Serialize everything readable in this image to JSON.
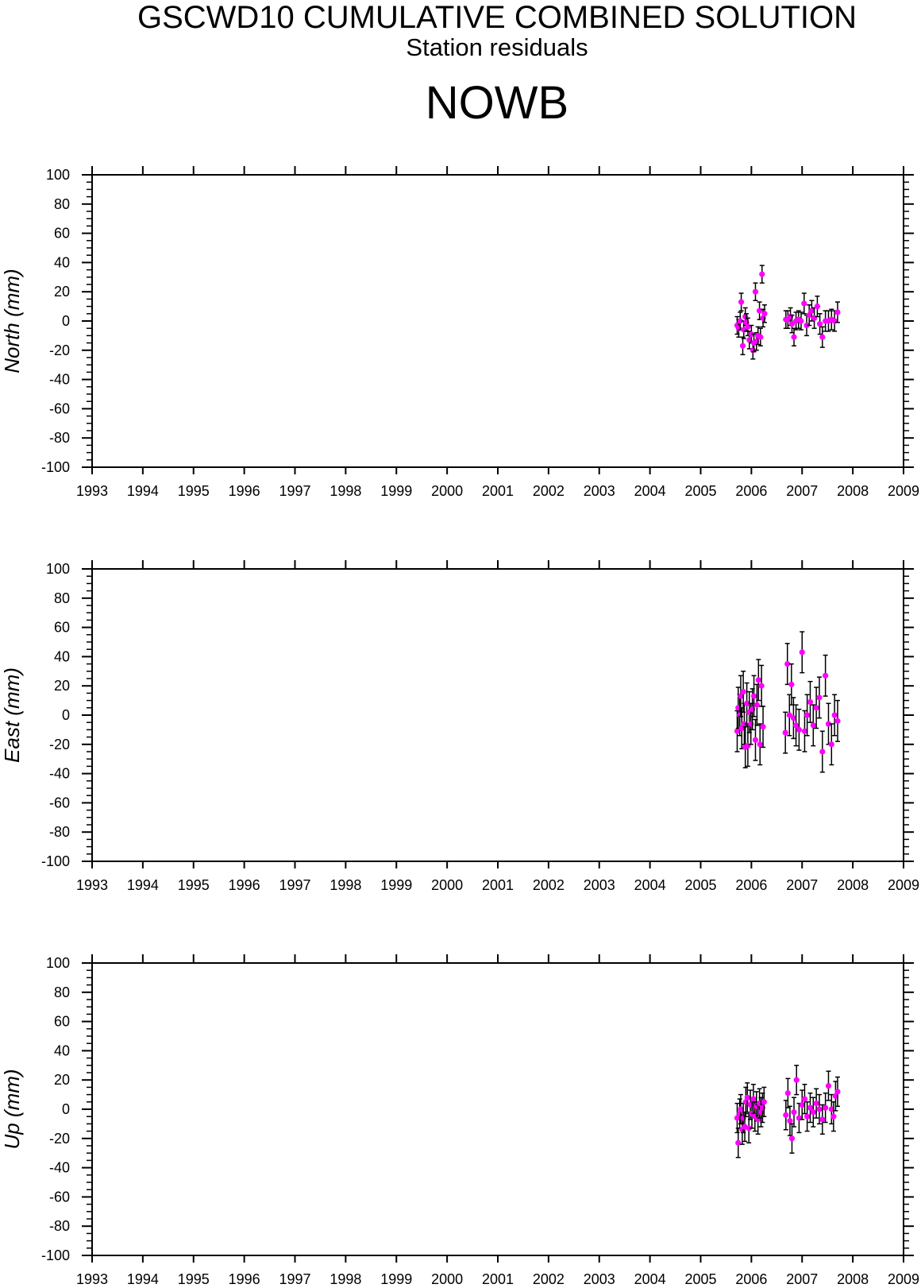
{
  "header": {
    "title": "GSCWD10 CUMULATIVE COMBINED SOLUTION",
    "subtitle": "Station residuals",
    "station": "NOWB"
  },
  "style": {
    "point_color": "#ff00ff",
    "errorbar_color": "#000000"
  },
  "chart_data": [
    {
      "type": "scatter",
      "ylabel": "North (mm)",
      "xlim": [
        1993,
        2009
      ],
      "ylim": [
        -100,
        100
      ],
      "x_ticks": [
        1993,
        1994,
        1995,
        1996,
        1997,
        1998,
        1999,
        2000,
        2001,
        2002,
        2003,
        2004,
        2005,
        2006,
        2007,
        2008,
        2009
      ],
      "y_ticks": [
        100,
        80,
        60,
        40,
        20,
        0,
        -20,
        -40,
        -60,
        -80,
        -100
      ],
      "grid": false,
      "points": [
        {
          "x": 2005.72,
          "y": -3,
          "err": 6
        },
        {
          "x": 2005.75,
          "y": -5,
          "err": 6
        },
        {
          "x": 2005.78,
          "y": 0,
          "err": 6
        },
        {
          "x": 2005.8,
          "y": 13,
          "err": 6
        },
        {
          "x": 2005.83,
          "y": -17,
          "err": 6
        },
        {
          "x": 2005.85,
          "y": -6,
          "err": 6
        },
        {
          "x": 2005.88,
          "y": 3,
          "err": 6
        },
        {
          "x": 2005.9,
          "y": -1,
          "err": 6
        },
        {
          "x": 2005.93,
          "y": -4,
          "err": 6
        },
        {
          "x": 2005.96,
          "y": -13,
          "err": 6
        },
        {
          "x": 2006.0,
          "y": -9,
          "err": 6
        },
        {
          "x": 2006.03,
          "y": -20,
          "err": 6
        },
        {
          "x": 2006.05,
          "y": -15,
          "err": 6
        },
        {
          "x": 2006.08,
          "y": 20,
          "err": 6
        },
        {
          "x": 2006.1,
          "y": -14,
          "err": 6
        },
        {
          "x": 2006.13,
          "y": -10,
          "err": 6
        },
        {
          "x": 2006.16,
          "y": 7,
          "err": 6
        },
        {
          "x": 2006.18,
          "y": -11,
          "err": 6
        },
        {
          "x": 2006.21,
          "y": 32,
          "err": 6
        },
        {
          "x": 2006.23,
          "y": 2,
          "err": 6
        },
        {
          "x": 2006.26,
          "y": 5,
          "err": 6
        },
        {
          "x": 2006.68,
          "y": 1,
          "err": 6
        },
        {
          "x": 2006.72,
          "y": 1,
          "err": 6
        },
        {
          "x": 2006.77,
          "y": 3,
          "err": 6
        },
        {
          "x": 2006.8,
          "y": -2,
          "err": 6
        },
        {
          "x": 2006.84,
          "y": -11,
          "err": 6
        },
        {
          "x": 2006.88,
          "y": 0,
          "err": 6
        },
        {
          "x": 2006.93,
          "y": 1,
          "err": 6
        },
        {
          "x": 2006.98,
          "y": 0,
          "err": 6
        },
        {
          "x": 2007.04,
          "y": 12,
          "err": 7
        },
        {
          "x": 2007.09,
          "y": -3,
          "err": 7
        },
        {
          "x": 2007.14,
          "y": 4,
          "err": 7
        },
        {
          "x": 2007.19,
          "y": 7,
          "err": 7
        },
        {
          "x": 2007.24,
          "y": 2,
          "err": 7
        },
        {
          "x": 2007.3,
          "y": 10,
          "err": 7
        },
        {
          "x": 2007.35,
          "y": -2,
          "err": 7
        },
        {
          "x": 2007.4,
          "y": -11,
          "err": 7
        },
        {
          "x": 2007.46,
          "y": 0,
          "err": 7
        },
        {
          "x": 2007.52,
          "y": 0,
          "err": 7
        },
        {
          "x": 2007.58,
          "y": 1,
          "err": 7
        },
        {
          "x": 2007.64,
          "y": 0,
          "err": 7
        },
        {
          "x": 2007.7,
          "y": 6,
          "err": 7
        }
      ]
    },
    {
      "type": "scatter",
      "ylabel": "East (mm)",
      "xlim": [
        1993,
        2009
      ],
      "ylim": [
        -100,
        100
      ],
      "x_ticks": [
        1993,
        1994,
        1995,
        1996,
        1997,
        1998,
        1999,
        2000,
        2001,
        2002,
        2003,
        2004,
        2005,
        2006,
        2007,
        2008,
        2009
      ],
      "y_ticks": [
        100,
        80,
        60,
        40,
        20,
        0,
        -20,
        -40,
        -60,
        -80,
        -100
      ],
      "grid": false,
      "points": [
        {
          "x": 2005.72,
          "y": -11,
          "err": 14
        },
        {
          "x": 2005.74,
          "y": 5,
          "err": 14
        },
        {
          "x": 2005.77,
          "y": 0,
          "err": 14
        },
        {
          "x": 2005.79,
          "y": 13,
          "err": 14
        },
        {
          "x": 2005.81,
          "y": -9,
          "err": 14
        },
        {
          "x": 2005.84,
          "y": 16,
          "err": 14
        },
        {
          "x": 2005.86,
          "y": -6,
          "err": 14
        },
        {
          "x": 2005.88,
          "y": -22,
          "err": 14
        },
        {
          "x": 2005.91,
          "y": 8,
          "err": 14
        },
        {
          "x": 2005.93,
          "y": -21,
          "err": 14
        },
        {
          "x": 2005.96,
          "y": 2,
          "err": 14
        },
        {
          "x": 2005.99,
          "y": -6,
          "err": 14
        },
        {
          "x": 2006.02,
          "y": 4,
          "err": 14
        },
        {
          "x": 2006.05,
          "y": 13,
          "err": 14
        },
        {
          "x": 2006.08,
          "y": -17,
          "err": 14
        },
        {
          "x": 2006.11,
          "y": 7,
          "err": 14
        },
        {
          "x": 2006.14,
          "y": 24,
          "err": 14
        },
        {
          "x": 2006.17,
          "y": -20,
          "err": 14
        },
        {
          "x": 2006.2,
          "y": 20,
          "err": 14
        },
        {
          "x": 2006.23,
          "y": -8,
          "err": 14
        },
        {
          "x": 2006.67,
          "y": -12,
          "err": 14
        },
        {
          "x": 2006.71,
          "y": 35,
          "err": 14
        },
        {
          "x": 2006.75,
          "y": 0,
          "err": 14
        },
        {
          "x": 2006.79,
          "y": 21,
          "err": 14
        },
        {
          "x": 2006.83,
          "y": -2,
          "err": 14
        },
        {
          "x": 2006.88,
          "y": -7,
          "err": 14
        },
        {
          "x": 2006.94,
          "y": -10,
          "err": 14
        },
        {
          "x": 2007.0,
          "y": 43,
          "err": 14
        },
        {
          "x": 2007.05,
          "y": -11,
          "err": 14
        },
        {
          "x": 2007.1,
          "y": 0,
          "err": 14
        },
        {
          "x": 2007.16,
          "y": 9,
          "err": 14
        },
        {
          "x": 2007.22,
          "y": -7,
          "err": 14
        },
        {
          "x": 2007.28,
          "y": 5,
          "err": 14
        },
        {
          "x": 2007.34,
          "y": 12,
          "err": 14
        },
        {
          "x": 2007.4,
          "y": -25,
          "err": 14
        },
        {
          "x": 2007.46,
          "y": 27,
          "err": 14
        },
        {
          "x": 2007.52,
          "y": -6,
          "err": 14
        },
        {
          "x": 2007.58,
          "y": -20,
          "err": 14
        },
        {
          "x": 2007.64,
          "y": 0,
          "err": 14
        },
        {
          "x": 2007.7,
          "y": -4,
          "err": 14
        }
      ]
    },
    {
      "type": "scatter",
      "ylabel": "Up (mm)",
      "xlim": [
        1993,
        2009
      ],
      "ylim": [
        -100,
        100
      ],
      "x_ticks": [
        1993,
        1994,
        1995,
        1996,
        1997,
        1998,
        1999,
        2000,
        2001,
        2002,
        2003,
        2004,
        2005,
        2006,
        2007,
        2008,
        2009
      ],
      "y_ticks": [
        100,
        80,
        60,
        40,
        20,
        0,
        -20,
        -40,
        -60,
        -80,
        -100
      ],
      "grid": false,
      "points": [
        {
          "x": 2005.72,
          "y": -6,
          "err": 10
        },
        {
          "x": 2005.74,
          "y": -23,
          "err": 10
        },
        {
          "x": 2005.77,
          "y": -3,
          "err": 10
        },
        {
          "x": 2005.79,
          "y": 0,
          "err": 10
        },
        {
          "x": 2005.82,
          "y": -14,
          "err": 10
        },
        {
          "x": 2005.84,
          "y": -6,
          "err": 10
        },
        {
          "x": 2005.87,
          "y": -12,
          "err": 10
        },
        {
          "x": 2005.89,
          "y": 5,
          "err": 10
        },
        {
          "x": 2005.92,
          "y": 8,
          "err": 10
        },
        {
          "x": 2005.95,
          "y": -13,
          "err": 10
        },
        {
          "x": 2005.98,
          "y": 3,
          "err": 10
        },
        {
          "x": 2006.01,
          "y": -3,
          "err": 10
        },
        {
          "x": 2006.04,
          "y": 7,
          "err": 10
        },
        {
          "x": 2006.07,
          "y": -5,
          "err": 10
        },
        {
          "x": 2006.1,
          "y": 2,
          "err": 10
        },
        {
          "x": 2006.13,
          "y": -7,
          "err": 10
        },
        {
          "x": 2006.16,
          "y": 4,
          "err": 10
        },
        {
          "x": 2006.19,
          "y": -2,
          "err": 10
        },
        {
          "x": 2006.22,
          "y": 1,
          "err": 10
        },
        {
          "x": 2006.25,
          "y": 5,
          "err": 10
        },
        {
          "x": 2006.68,
          "y": -4,
          "err": 10
        },
        {
          "x": 2006.72,
          "y": 11,
          "err": 10
        },
        {
          "x": 2006.76,
          "y": -8,
          "err": 10
        },
        {
          "x": 2006.8,
          "y": -20,
          "err": 10
        },
        {
          "x": 2006.84,
          "y": -2,
          "err": 10
        },
        {
          "x": 2006.89,
          "y": 20,
          "err": 10
        },
        {
          "x": 2006.94,
          "y": -6,
          "err": 10
        },
        {
          "x": 2007.0,
          "y": 3,
          "err": 10
        },
        {
          "x": 2007.05,
          "y": 7,
          "err": 10
        },
        {
          "x": 2007.1,
          "y": -5,
          "err": 10
        },
        {
          "x": 2007.16,
          "y": 1,
          "err": 10
        },
        {
          "x": 2007.22,
          "y": -2,
          "err": 10
        },
        {
          "x": 2007.28,
          "y": 4,
          "err": 10
        },
        {
          "x": 2007.34,
          "y": 0,
          "err": 10
        },
        {
          "x": 2007.4,
          "y": -7,
          "err": 10
        },
        {
          "x": 2007.46,
          "y": 1,
          "err": 10
        },
        {
          "x": 2007.52,
          "y": 16,
          "err": 10
        },
        {
          "x": 2007.58,
          "y": 0,
          "err": 10
        },
        {
          "x": 2007.62,
          "y": -5,
          "err": 10
        },
        {
          "x": 2007.66,
          "y": 9,
          "err": 10
        },
        {
          "x": 2007.7,
          "y": 12,
          "err": 10
        }
      ]
    }
  ]
}
